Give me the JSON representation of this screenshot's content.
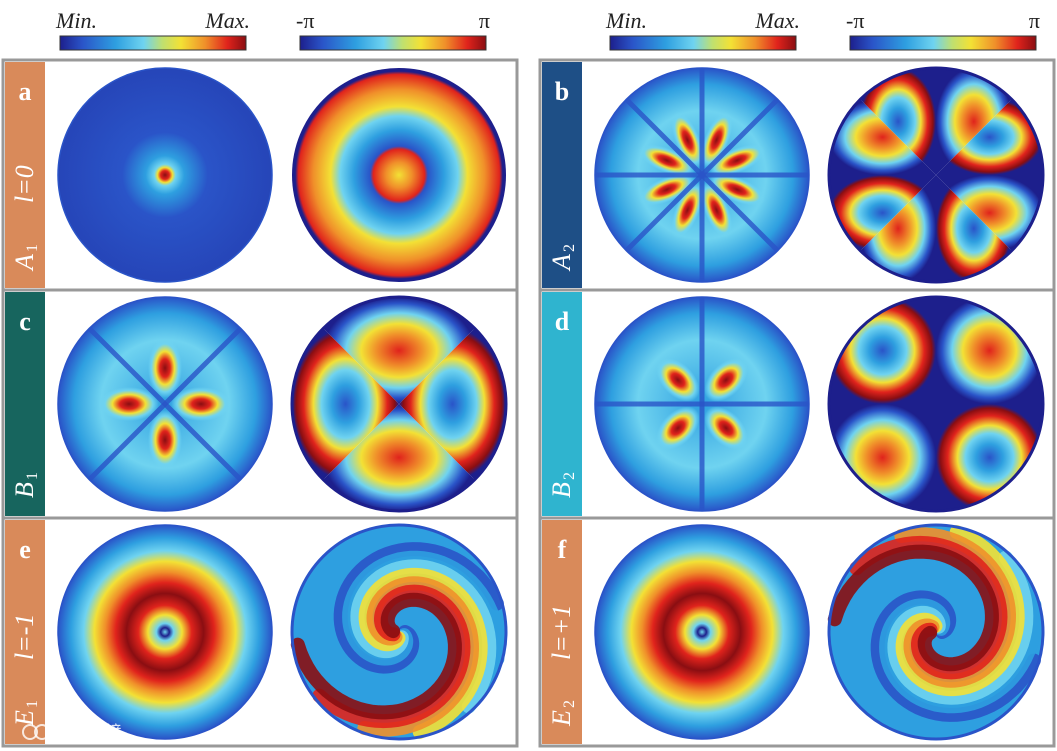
{
  "colorbars": {
    "intensity": {
      "min_label": "Min.",
      "max_label": "Max."
    },
    "phase": {
      "min_label": "-π",
      "max_label": "π"
    }
  },
  "colormap_stops": [
    "#1d1f8c",
    "#2a54c8",
    "#2e9fe0",
    "#6fd3f0",
    "#bfe070",
    "#f3e135",
    "#f0902a",
    "#e0231c",
    "#8a0e12"
  ],
  "colors": {
    "orange_tab": "#d98a5a",
    "dark_blue_tab": "#1e4f86",
    "teal_tab": "#17655e",
    "light_blue_tab": "#2fb4cf",
    "frame_gray": "#999999"
  },
  "panels": [
    {
      "letter": "a",
      "mode": "A",
      "sub": "1",
      "order_label": "l=0"
    },
    {
      "letter": "b",
      "mode": "A",
      "sub": "2",
      "order_label": ""
    },
    {
      "letter": "c",
      "mode": "B",
      "sub": "1",
      "order_label": ""
    },
    {
      "letter": "d",
      "mode": "B",
      "sub": "2",
      "order_label": ""
    },
    {
      "letter": "e",
      "mode": "E",
      "sub": "1",
      "order_label": "l=-1"
    },
    {
      "letter": "f",
      "mode": "E",
      "sub": "2",
      "order_label": "l=+1"
    }
  ],
  "watermark": "大数跨境"
}
